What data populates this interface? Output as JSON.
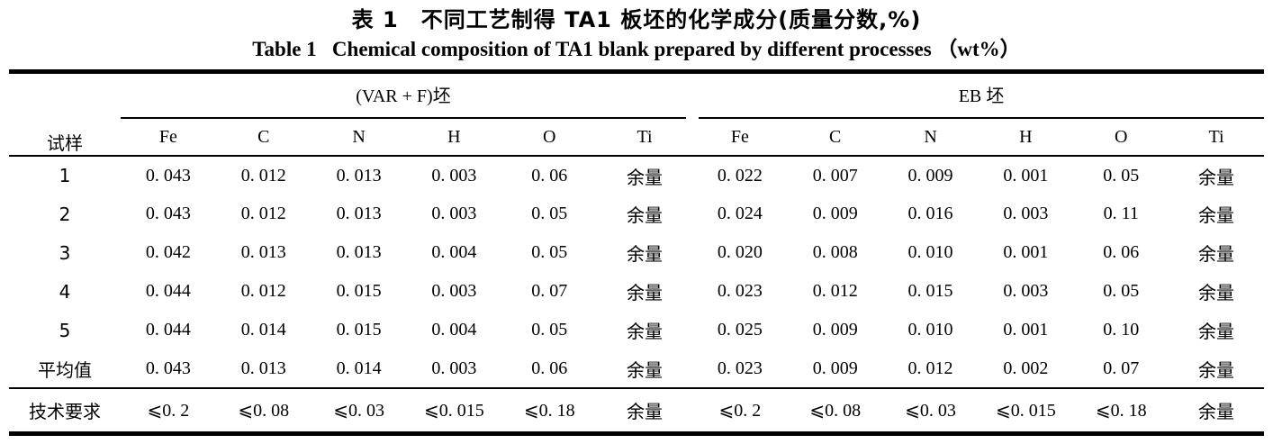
{
  "title": {
    "zh": "表 1　不同工艺制得 TA1 板坯的化学成分(质量分数,%)",
    "en": "Table 1   Chemical composition of TA1 blank prepared by different processes （wt%）"
  },
  "table": {
    "sample_header": "试样",
    "groups": [
      {
        "id": "var-f",
        "label": "(VAR + F)坯",
        "columns": [
          "Fe",
          "C",
          "N",
          "H",
          "O",
          "Ti"
        ]
      },
      {
        "id": "eb",
        "label": "EB 坯",
        "columns": [
          "Fe",
          "C",
          "N",
          "H",
          "O",
          "Ti"
        ]
      }
    ],
    "rows": [
      {
        "type": "data",
        "label": "1",
        "cells": [
          "0. 043",
          "0. 012",
          "0. 013",
          "0. 003",
          "0. 06",
          "余量",
          "0. 022",
          "0. 007",
          "0. 009",
          "0. 001",
          "0. 05",
          "余量"
        ]
      },
      {
        "type": "data",
        "label": "2",
        "cells": [
          "0. 043",
          "0. 012",
          "0. 013",
          "0. 003",
          "0. 05",
          "余量",
          "0. 024",
          "0. 009",
          "0. 016",
          "0. 003",
          "0. 11",
          "余量"
        ]
      },
      {
        "type": "data",
        "label": "3",
        "cells": [
          "0. 042",
          "0. 013",
          "0. 013",
          "0. 004",
          "0. 05",
          "余量",
          "0. 020",
          "0. 008",
          "0. 010",
          "0. 001",
          "0. 06",
          "余量"
        ]
      },
      {
        "type": "data",
        "label": "4",
        "cells": [
          "0. 044",
          "0. 012",
          "0. 015",
          "0. 003",
          "0. 07",
          "余量",
          "0. 023",
          "0. 012",
          "0. 015",
          "0. 003",
          "0. 05",
          "余量"
        ]
      },
      {
        "type": "data",
        "label": "5",
        "cells": [
          "0. 044",
          "0. 014",
          "0. 015",
          "0. 004",
          "0. 05",
          "余量",
          "0. 025",
          "0. 009",
          "0. 010",
          "0. 001",
          "0. 10",
          "余量"
        ]
      },
      {
        "type": "avg",
        "label": "平均值",
        "cells": [
          "0. 043",
          "0. 013",
          "0. 014",
          "0. 003",
          "0. 06",
          "余量",
          "0. 023",
          "0. 009",
          "0. 012",
          "0. 002",
          "0. 07",
          "余量"
        ]
      },
      {
        "type": "spec",
        "label": "技术要求",
        "cells": [
          "⩽0. 2",
          "⩽0. 08",
          "⩽0. 03",
          "⩽0. 015",
          "⩽0. 18",
          "余量",
          "⩽0. 2",
          "⩽0. 08",
          "⩽0. 03",
          "⩽0. 015",
          "⩽0. 18",
          "余量"
        ]
      }
    ]
  }
}
